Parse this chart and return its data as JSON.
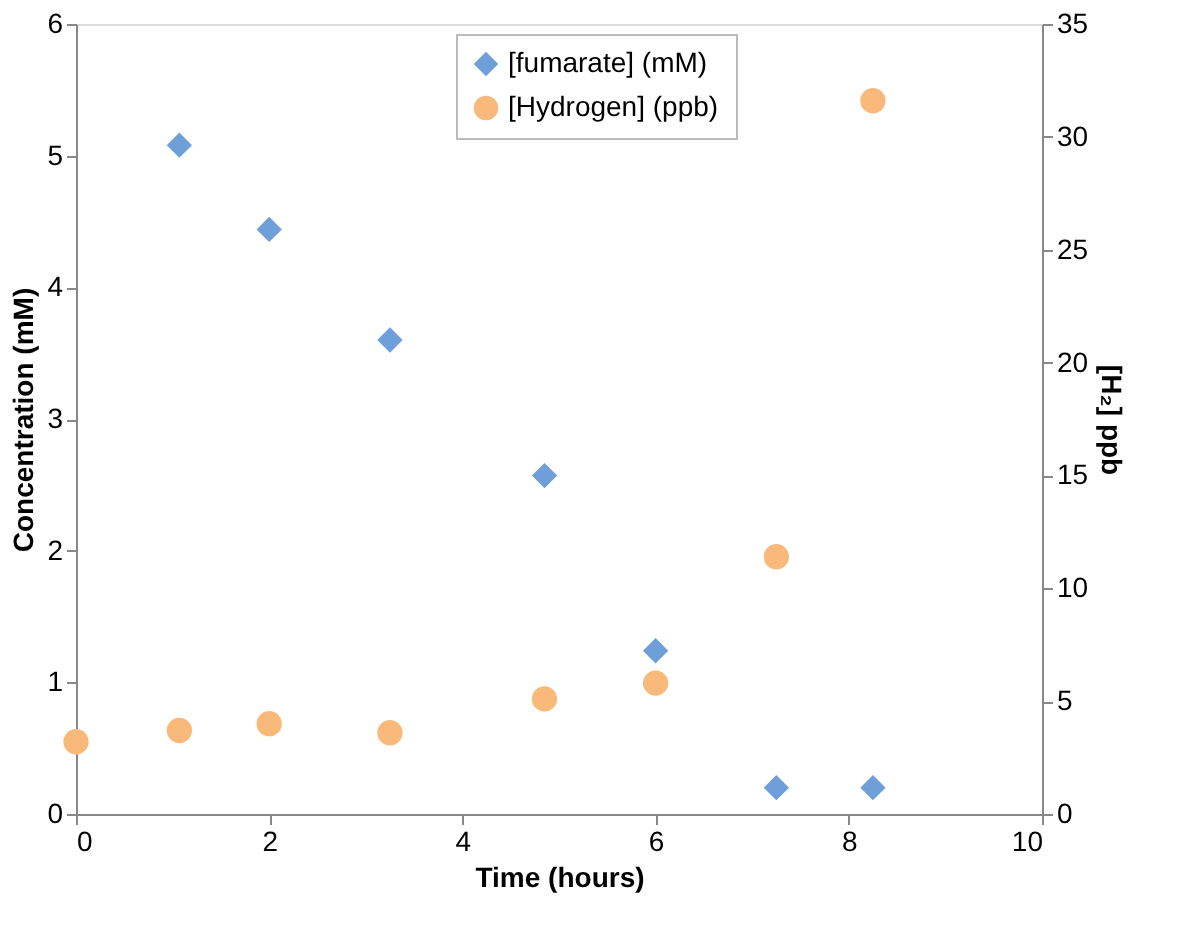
{
  "chart_data": {
    "type": "scatter",
    "xlabel": "Time (hours)",
    "ylabel": "Concentration (mM)",
    "y2label": "[H₂] ppb",
    "xlim": [
      0,
      10
    ],
    "xticks": [
      0,
      2,
      4,
      6,
      8,
      10
    ],
    "ylim": [
      0,
      6
    ],
    "yticks": [
      0,
      1,
      2,
      3,
      4,
      5,
      6
    ],
    "y2lim": [
      0,
      35
    ],
    "y2ticks": [
      0,
      5,
      10,
      15,
      20,
      25,
      30,
      35
    ],
    "grid": false,
    "legend": "top",
    "series": [
      {
        "name": "[fumarate] (mM)",
        "color": "#6f9fd8",
        "marker": "diamond",
        "x": [
          1.07,
          2.0,
          3.25,
          4.85,
          6.0,
          7.25,
          8.25
        ],
        "values": [
          5.08,
          4.44,
          3.6,
          2.57,
          1.24,
          0.2,
          0.2
        ]
      },
      {
        "name": "[Hydrogen] (ppb)",
        "color": "#f9b97a",
        "marker": "circle",
        "axis": "y2",
        "x": [
          0,
          1.07,
          2.0,
          3.25,
          4.85,
          6.0,
          7.25,
          8.25
        ],
        "values": [
          3.2,
          3.7,
          4.0,
          3.6,
          5.1,
          5.8,
          11.4,
          31.6
        ]
      }
    ]
  }
}
